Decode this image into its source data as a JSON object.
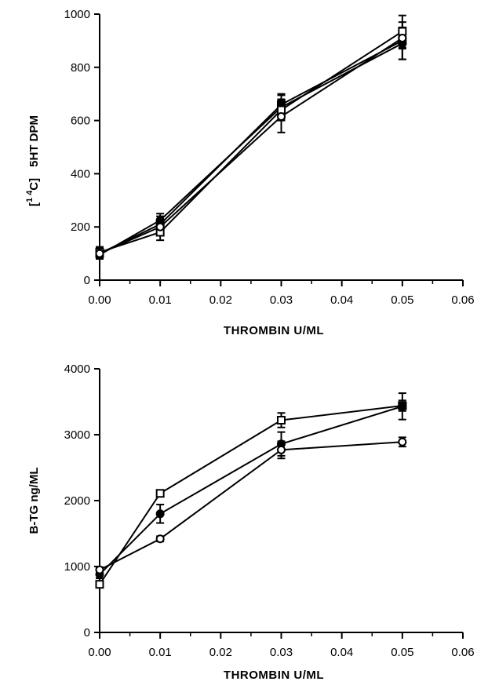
{
  "chart_data": [
    {
      "type": "line",
      "title": "",
      "xlabel": "THROMBIN  U/ML",
      "ylabel": "[14C] 5HT DPM",
      "ylabel_parts": {
        "open": "[",
        "super": "1 4",
        "c": "C]",
        "rest": "5HT DPM"
      },
      "xlim": [
        0,
        0.06
      ],
      "ylim": [
        0,
        1000
      ],
      "x_ticks": [
        0,
        0.01,
        0.02,
        0.03,
        0.04,
        0.05,
        0.06
      ],
      "x_tick_labels": [
        "0.00",
        "0.01",
        "0.02",
        "0.03",
        "0.04",
        "0.05",
        "0.06"
      ],
      "y_ticks": [
        0,
        200,
        400,
        600,
        800,
        1000
      ],
      "y_tick_labels": [
        "0",
        "200",
        "400",
        "600",
        "800",
        "1000"
      ],
      "grid": false,
      "series": [
        {
          "marker": "filled-square",
          "x": [
            0,
            0.01,
            0.03,
            0.05
          ],
          "y": [
            100,
            210,
            660,
            900
          ],
          "err": [
            20,
            30,
            40,
            70
          ]
        },
        {
          "marker": "filled-circle",
          "x": [
            0,
            0.01,
            0.03,
            0.05
          ],
          "y": [
            95,
            225,
            650,
            890
          ],
          "err": [
            15,
            25,
            45,
            60
          ]
        },
        {
          "marker": "open-square",
          "x": [
            0,
            0.01,
            0.03,
            0.05
          ],
          "y": [
            105,
            180,
            640,
            935
          ],
          "err": [
            20,
            30,
            40,
            60
          ]
        },
        {
          "marker": "open-circle",
          "x": [
            0,
            0.01,
            0.03,
            0.05
          ],
          "y": [
            100,
            200,
            615,
            910
          ],
          "err": [
            15,
            20,
            60,
            40
          ]
        }
      ]
    },
    {
      "type": "line",
      "title": "",
      "xlabel": "THROMBIN  U/ML",
      "ylabel": "B-TG  ng/ML",
      "xlim": [
        0,
        0.06
      ],
      "ylim": [
        0,
        4000
      ],
      "x_ticks": [
        0,
        0.01,
        0.02,
        0.03,
        0.04,
        0.05,
        0.06
      ],
      "x_tick_labels": [
        "0.00",
        "0.01",
        "0.02",
        "0.03",
        "0.04",
        "0.05",
        "0.06"
      ],
      "y_ticks": [
        0,
        1000,
        2000,
        3000,
        4000
      ],
      "y_tick_labels": [
        "0",
        "1000",
        "2000",
        "3000",
        "4000"
      ],
      "grid": false,
      "series": [
        {
          "marker": "open-square",
          "x": [
            0,
            0.01,
            0.03,
            0.05
          ],
          "y": [
            730,
            2110,
            3220,
            3440
          ],
          "err": [
            50,
            40,
            110,
            80
          ]
        },
        {
          "marker": "filled-circle",
          "x": [
            0,
            0.01,
            0.03,
            0.05
          ],
          "y": [
            880,
            1800,
            2860,
            3430
          ],
          "err": [
            60,
            140,
            180,
            200
          ]
        },
        {
          "marker": "open-circle",
          "x": [
            0,
            0.01,
            0.03,
            0.05
          ],
          "y": [
            950,
            1420,
            2770,
            2890
          ],
          "err": [
            40,
            40,
            130,
            70
          ]
        },
        {
          "marker": "filled-square",
          "x": [
            0.05
          ],
          "y": [
            3440
          ],
          "err": [
            0
          ]
        }
      ]
    }
  ]
}
